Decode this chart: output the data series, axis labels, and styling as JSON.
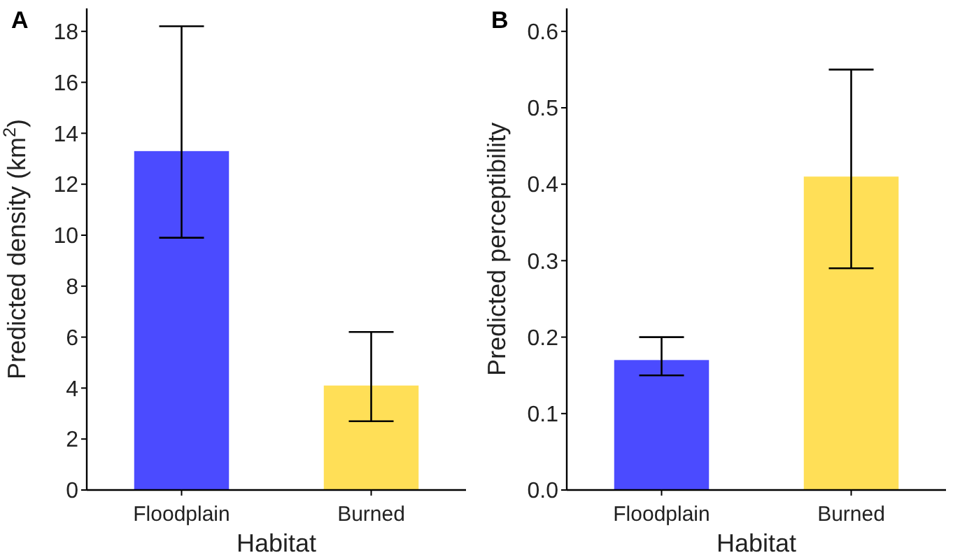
{
  "chart_data": [
    {
      "type": "bar",
      "title": "A",
      "categories": [
        "Floodplain",
        "Burned"
      ],
      "values": [
        13.3,
        4.1
      ],
      "colors": [
        "#4b4bff",
        "#ffdf57"
      ],
      "errors": [
        [
          9.9,
          18.2
        ],
        [
          2.7,
          6.2
        ]
      ],
      "xlabel": "Habitat",
      "ylabel": "Predicted density (km$^{2}$)",
      "ylim": [
        0,
        18.9
      ],
      "yticks": [
        0,
        2,
        4,
        6,
        8,
        10,
        12,
        14,
        16,
        18
      ],
      "grid": false
    },
    {
      "type": "bar",
      "title": "B",
      "categories": [
        "Floodplain",
        "Burned"
      ],
      "values": [
        0.17,
        0.41
      ],
      "colors": [
        "#4b4bff",
        "#ffdf57"
      ],
      "errors": [
        [
          0.15,
          0.2
        ],
        [
          0.29,
          0.55
        ]
      ],
      "xlabel": "Habitat",
      "ylabel": "Predicted perceptibility",
      "ylim": [
        0,
        0.63
      ],
      "yticks": [
        {
          "value": 0,
          "label": "0.0"
        },
        0.1,
        0.2,
        0.3,
        0.4,
        0.5,
        0.6
      ],
      "grid": false
    }
  ]
}
